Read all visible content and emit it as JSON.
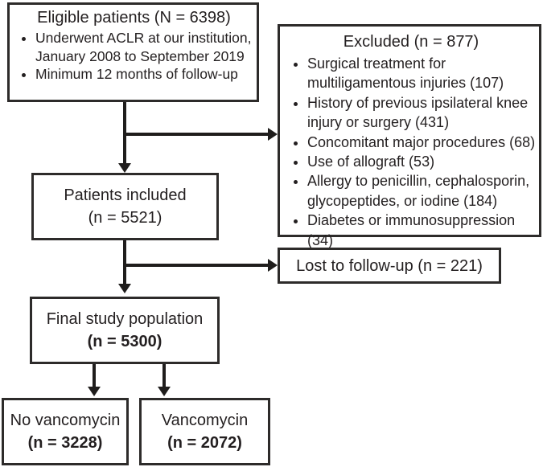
{
  "colors": {
    "background": "#ffffff",
    "text": "#231f20",
    "box_border": "#2d2b2a",
    "arrow": "#1f1d1c"
  },
  "diagram": {
    "eligible": {
      "title": "Eligible patients (N = 6398)",
      "bullets": [
        [
          "Underwent ACLR at our institution,",
          "January 2008 to September 2019"
        ],
        [
          "Minimum 12 months of follow-up"
        ]
      ]
    },
    "excluded": {
      "title": "Excluded (n = 877)",
      "bullets": [
        [
          "Surgical treatment for",
          "multiligamentous injuries (107)"
        ],
        [
          "History of previous ipsilateral knee",
          "injury or surgery (431)"
        ],
        [
          "Concomitant major procedures (68)"
        ],
        [
          "Use of allograft (53)"
        ],
        [
          "Allergy to penicillin, cephalosporin,",
          "glycopeptides, or iodine (184)"
        ],
        [
          "Diabetes or immunosuppression (34)"
        ]
      ]
    },
    "included": {
      "line1": "Patients included",
      "line2": "(n = 5521)"
    },
    "lost": {
      "label": "Lost to follow-up (n = 221)"
    },
    "final": {
      "line1": "Final study population",
      "line2": "(n = 5300)"
    },
    "no_vancomycin": {
      "line1": "No vancomycin",
      "line2": "(n = 3228)"
    },
    "vancomycin": {
      "line1": "Vancomycin",
      "line2": "(n = 2072)"
    }
  }
}
